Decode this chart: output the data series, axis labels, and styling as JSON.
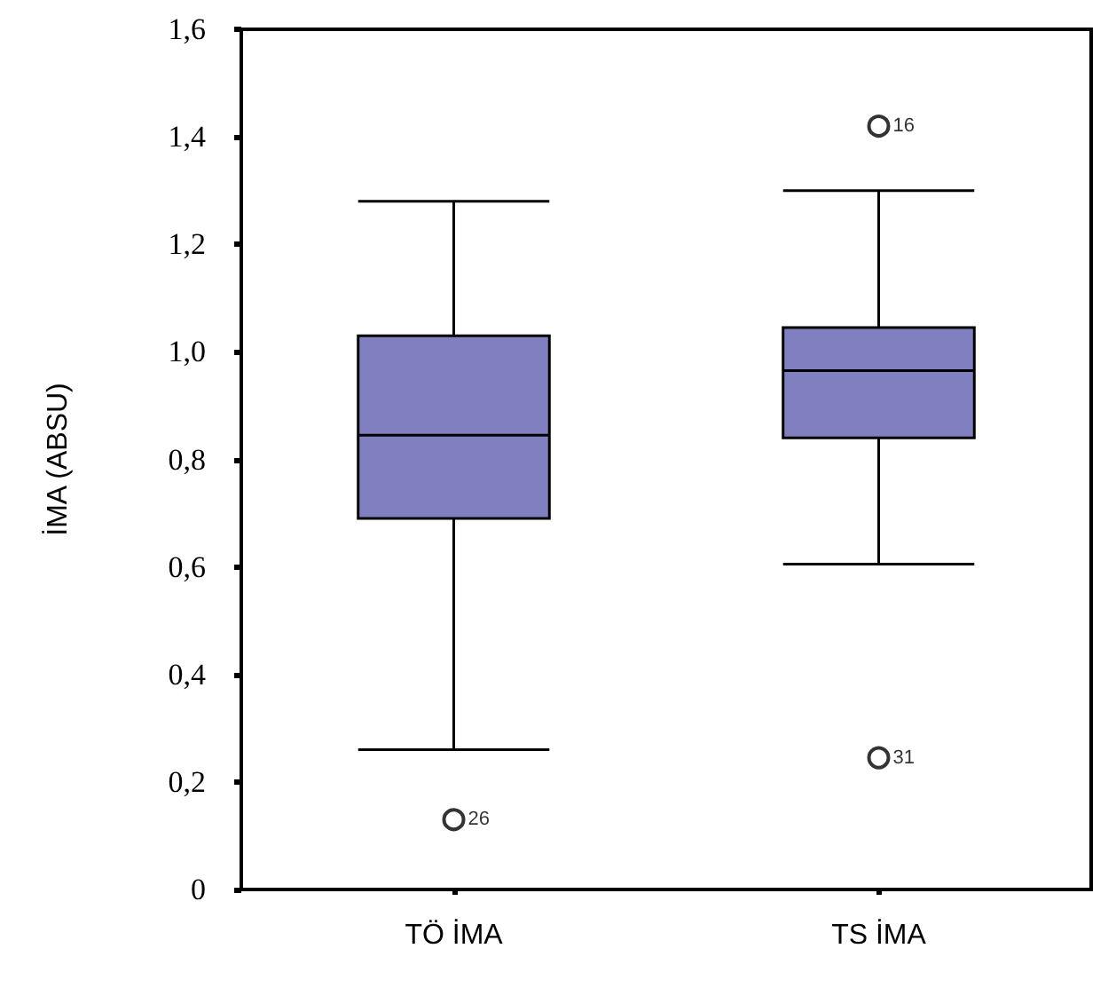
{
  "chart_data": {
    "type": "box",
    "ylabel": "İMA (ABSU)",
    "categories": [
      "TÖ İMA",
      "TS İMA"
    ],
    "color": "#8080c0",
    "boxes": [
      {
        "low": 0.26,
        "q1": 0.69,
        "median": 0.845,
        "q3": 1.03,
        "high": 1.28,
        "outliers": [
          0.13
        ]
      },
      {
        "low": 0.605,
        "q1": 0.84,
        "median": 0.965,
        "q3": 1.045,
        "high": 1.3,
        "outliers": [
          1.42,
          0.245
        ]
      }
    ],
    "ylim": [
      0,
      1.6
    ],
    "yticks": [
      0,
      {
        "value": 0.2,
        "label": "0,2"
      },
      {
        "value": 0.4,
        "label": "0,4"
      },
      {
        "value": 0.6,
        "label": "0,6"
      },
      {
        "value": 0.8,
        "label": "0,8"
      },
      {
        "value": 1.0,
        "label": "1,0"
      },
      {
        "value": 1.2,
        "label": "1,2"
      },
      {
        "value": 1.4,
        "label": "1,4"
      },
      {
        "value": 1.6,
        "label": "1,6"
      }
    ],
    "annotations": [
      "26",
      "16",
      "31"
    ],
    "grid": false
  }
}
